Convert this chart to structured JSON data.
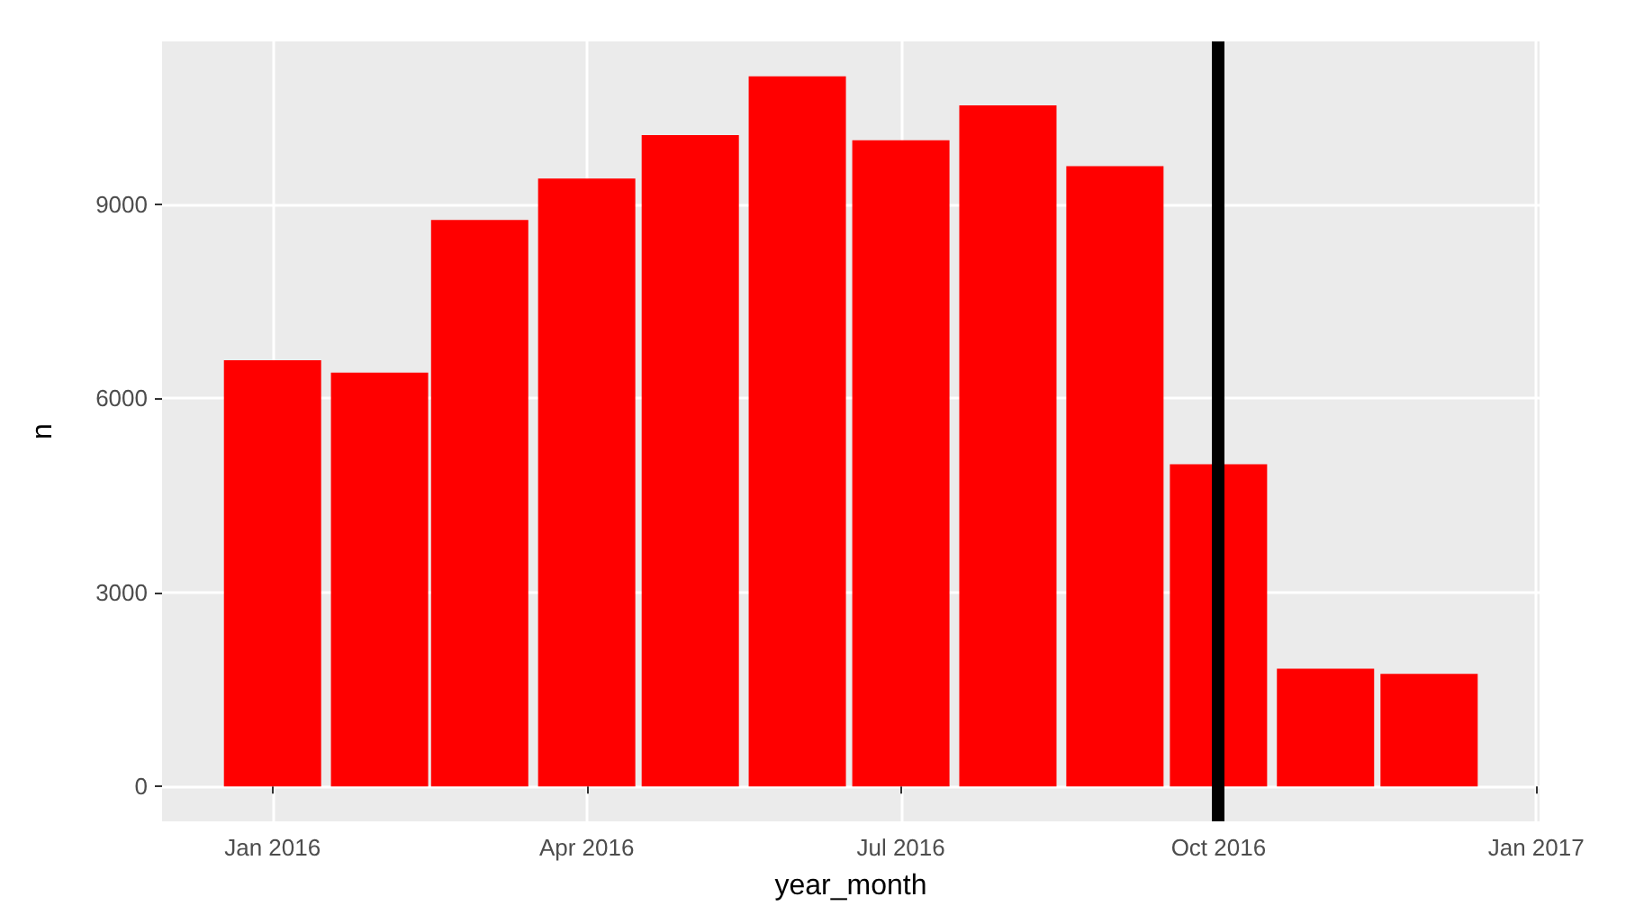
{
  "chart_data": {
    "type": "bar",
    "xlabel": "year_month",
    "ylabel": "n",
    "x": [
      "2016-01",
      "2016-02",
      "2016-03",
      "2016-04",
      "2016-05",
      "2016-06",
      "2016-07",
      "2016-08",
      "2016-09",
      "2016-10",
      "2016-11",
      "2016-12"
    ],
    "values": [
      6590,
      6400,
      8760,
      9400,
      10070,
      10980,
      9990,
      10530,
      9590,
      4980,
      1820,
      1740
    ],
    "color": "#ff0000",
    "xlim": [
      "2015-11-30",
      "2017-01-02"
    ],
    "xticks": [
      {
        "value": "2016-01-01",
        "label": "Jan 2016"
      },
      {
        "value": "2016-04-01",
        "label": "Apr 2016"
      },
      {
        "value": "2016-07-01",
        "label": "Jul 2016"
      },
      {
        "value": "2016-10-01",
        "label": "Oct 2016"
      },
      {
        "value": "2017-01-01",
        "label": "Jan 2017"
      }
    ],
    "ylim": [
      -540,
      11520
    ],
    "yticks": [
      0,
      3000,
      6000,
      9000
    ],
    "ref_lines": [
      {
        "axis": "x",
        "value": "2016-10-01",
        "color": "#000000"
      }
    ],
    "grid": true
  }
}
